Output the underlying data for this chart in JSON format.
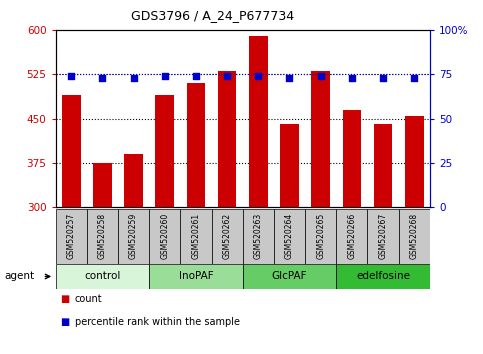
{
  "title": "GDS3796 / A_24_P677734",
  "samples": [
    "GSM520257",
    "GSM520258",
    "GSM520259",
    "GSM520260",
    "GSM520261",
    "GSM520262",
    "GSM520263",
    "GSM520264",
    "GSM520265",
    "GSM520266",
    "GSM520267",
    "GSM520268"
  ],
  "counts": [
    490,
    375,
    390,
    490,
    510,
    530,
    590,
    440,
    530,
    465,
    440,
    455
  ],
  "percentile_ranks": [
    74,
    73,
    73,
    74,
    74,
    74,
    74,
    73,
    74,
    73,
    73,
    73
  ],
  "groups": [
    {
      "label": "control",
      "start": 0,
      "end": 3,
      "color": "#d9f5d9"
    },
    {
      "label": "InoPAF",
      "start": 3,
      "end": 6,
      "color": "#99dd99"
    },
    {
      "label": "GlcPAF",
      "start": 6,
      "end": 9,
      "color": "#66cc66"
    },
    {
      "label": "edelfosine",
      "start": 9,
      "end": 12,
      "color": "#33bb33"
    }
  ],
  "ylim_left": [
    300,
    600
  ],
  "ylim_right": [
    0,
    100
  ],
  "yticks_left": [
    300,
    375,
    450,
    525,
    600
  ],
  "yticks_right": [
    0,
    25,
    50,
    75,
    100
  ],
  "ytick_labels_left": [
    "300",
    "375",
    "450",
    "525",
    "600"
  ],
  "ytick_labels_right": [
    "0",
    "25",
    "50",
    "75",
    "100%"
  ],
  "bar_color": "#cc0000",
  "dot_color": "#0000cc",
  "bar_width": 0.6,
  "background_color": "#ffffff",
  "plot_bg_color": "#ffffff",
  "sample_box_color": "#c8c8c8",
  "legend_items": [
    "count",
    "percentile rank within the sample"
  ],
  "legend_colors": [
    "#cc0000",
    "#0000cc"
  ],
  "grid_yticks": [
    375,
    450,
    525
  ],
  "percentile_hline": 75
}
